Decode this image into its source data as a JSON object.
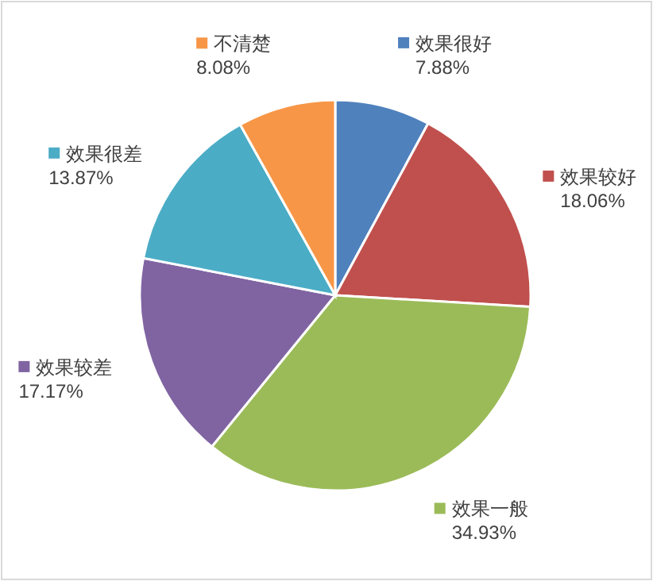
{
  "chart_data": {
    "type": "pie",
    "categories": [
      "效果很好",
      "效果较好",
      "效果一般",
      "效果较差",
      "效果很差",
      "不清楚"
    ],
    "values": [
      7.88,
      18.06,
      34.93,
      17.17,
      13.87,
      8.08
    ],
    "colors": [
      "#4f81bd",
      "#c0504d",
      "#9bbb59",
      "#8064a2",
      "#4bacc6",
      "#f79646"
    ],
    "value_labels": [
      "7.88%",
      "18.06%",
      "34.93%",
      "17.17%",
      "13.87%",
      "8.08%"
    ],
    "legend": "right"
  }
}
